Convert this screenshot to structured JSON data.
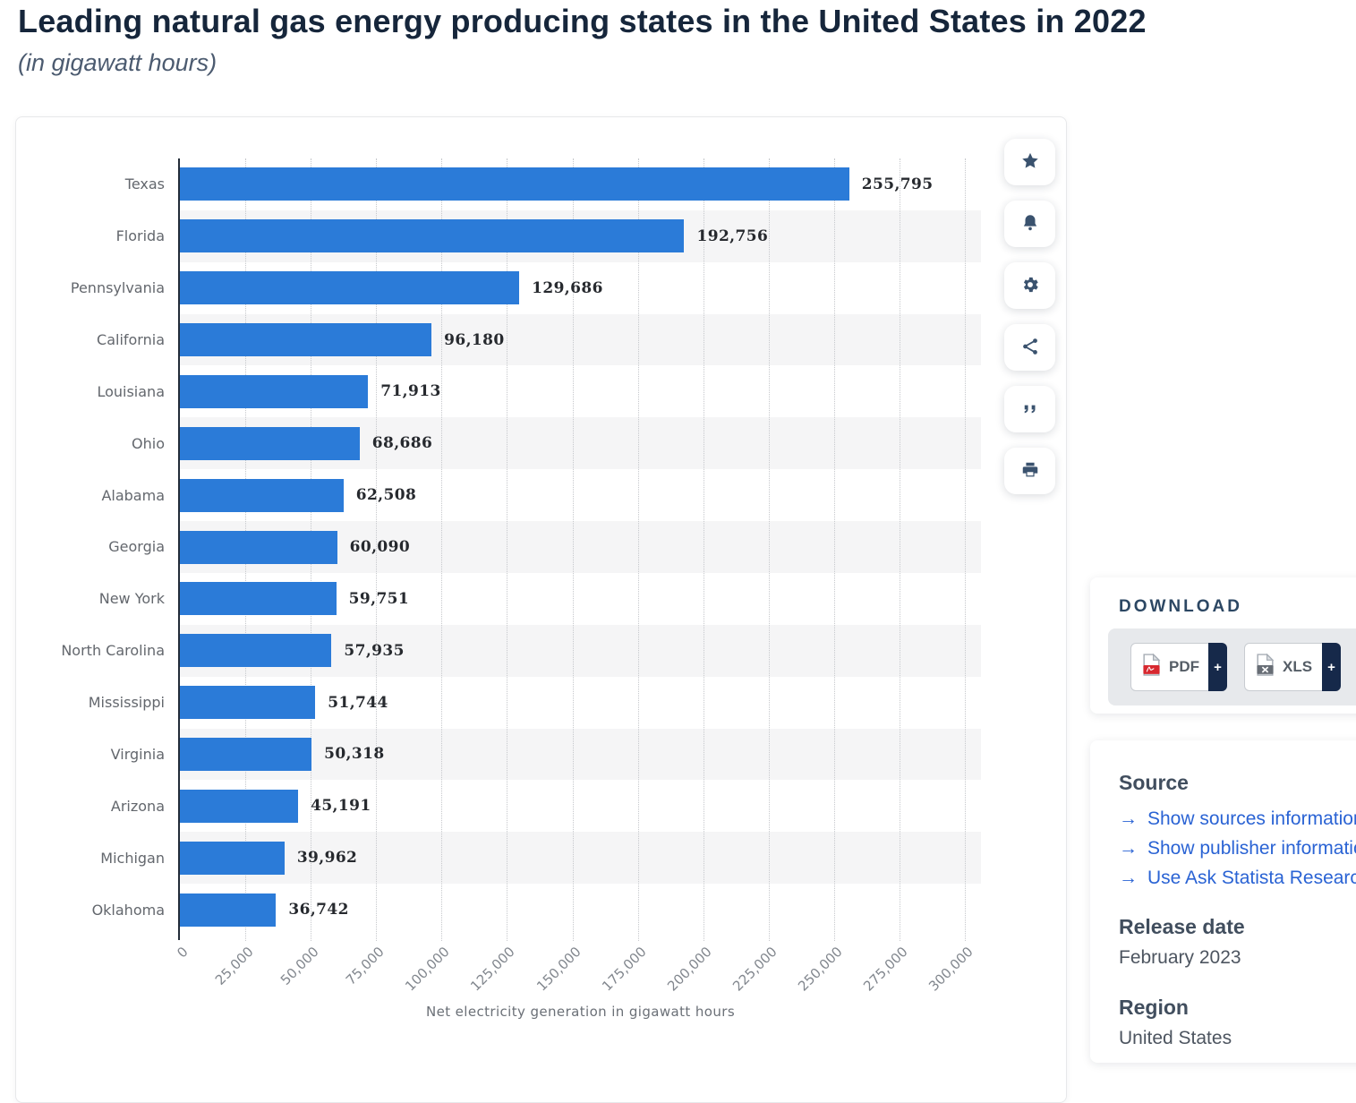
{
  "page": {
    "title": "Leading natural gas energy producing states in the United States in 2022",
    "subtitle": "(in gigawatt hours)"
  },
  "chart_data": {
    "type": "bar",
    "orientation": "horizontal",
    "title": "Leading natural gas energy producing states in the United States in 2022",
    "subtitle": "(in gigawatt hours)",
    "categories": [
      "Texas",
      "Florida",
      "Pennsylvania",
      "California",
      "Louisiana",
      "Ohio",
      "Alabama",
      "Georgia",
      "New York",
      "North Carolina",
      "Mississippi",
      "Virginia",
      "Arizona",
      "Michigan",
      "Oklahoma"
    ],
    "values": [
      255795,
      192756,
      129686,
      96180,
      71913,
      68686,
      62508,
      60090,
      59751,
      57935,
      51744,
      50318,
      45191,
      39962,
      36742
    ],
    "value_labels": [
      "255,795",
      "192,756",
      "129,686",
      "96,180",
      "71,913",
      "68,686",
      "62,508",
      "60,090",
      "59,751",
      "57,935",
      "51,744",
      "50,318",
      "45,191",
      "39,962",
      "36,742"
    ],
    "xlabel": "Net electricity generation in gigawatt hours",
    "ylabel": "",
    "xlim": [
      0,
      300000
    ],
    "xtick_step": 25000,
    "xtick_labels": [
      "0",
      "25,000",
      "50,000",
      "75,000",
      "100,000",
      "125,000",
      "150,000",
      "175,000",
      "200,000",
      "225,000",
      "250,000",
      "275,000",
      "300,000"
    ],
    "legend": "none",
    "grid": "vertical-dotted",
    "bar_color": "#2b7bd8",
    "stripe_color": "#f5f5f6"
  },
  "toolbar": {
    "icons": [
      "star-icon",
      "bell-icon",
      "gear-icon",
      "share-icon",
      "quote-icon",
      "print-icon"
    ]
  },
  "download": {
    "header": "DOWNLOAD",
    "buttons": [
      {
        "label": "PDF",
        "plus": "+"
      },
      {
        "label": "XLS",
        "plus": "+"
      }
    ]
  },
  "source": {
    "header": "Source",
    "arrow_glyph": "→",
    "links": [
      {
        "label": "Show sources information"
      },
      {
        "label": "Show publisher information"
      },
      {
        "label": "Use Ask Statista Research Service"
      }
    ],
    "release_date_header": "Release date",
    "release_date": "February 2023",
    "region_header": "Region",
    "region": "United States"
  }
}
